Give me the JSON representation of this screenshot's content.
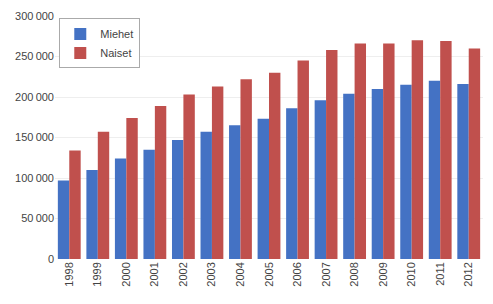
{
  "chart_data": {
    "type": "bar",
    "categories": [
      "1998",
      "1999",
      "2000",
      "2001",
      "2002",
      "2003",
      "2004",
      "2005",
      "2006",
      "2007",
      "2008",
      "2009",
      "2010",
      "2011",
      "2012"
    ],
    "series": [
      {
        "name": "Miehet",
        "color": "#4472C4",
        "values": [
          97000,
          110000,
          124000,
          135000,
          147000,
          157000,
          165000,
          173000,
          186000,
          196000,
          204000,
          210000,
          215000,
          220000,
          216000
        ]
      },
      {
        "name": "Naiset",
        "color": "#C0504D",
        "values": [
          134000,
          157000,
          174000,
          189000,
          203000,
          213000,
          222000,
          230000,
          245000,
          258000,
          266000,
          266000,
          270000,
          269000,
          260000
        ]
      }
    ],
    "ylim": [
      0,
      300000
    ],
    "yticks": [
      0,
      {
        "value": 50000,
        "label": "50 000"
      },
      {
        "value": 100000,
        "label": "100 000"
      },
      {
        "value": 150000,
        "label": "150 000"
      },
      {
        "value": 200000,
        "label": "200 000"
      },
      {
        "value": 250000,
        "label": "250 000"
      },
      {
        "value": 300000,
        "label": "300 000"
      }
    ],
    "grid": true,
    "legend": "upper left"
  }
}
